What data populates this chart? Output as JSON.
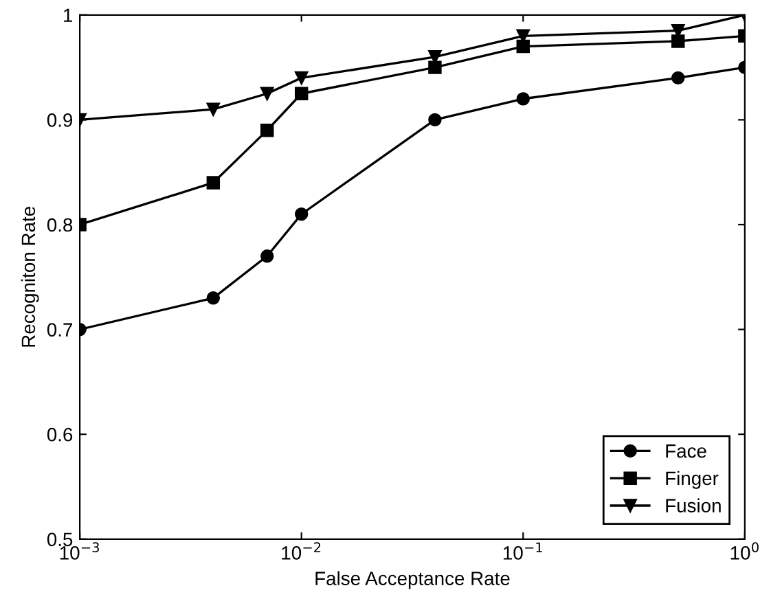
{
  "chart_data": {
    "type": "line",
    "xlabel": "False Acceptance Rate",
    "ylabel": "Recogniton Rate",
    "x": [
      0.001,
      0.004,
      0.007,
      0.01,
      0.04,
      0.1,
      0.5,
      1
    ],
    "series": [
      {
        "name": "Face",
        "color": "#000000",
        "marker": "circle",
        "values": [
          0.7,
          0.73,
          0.77,
          0.81,
          0.9,
          0.92,
          0.94,
          0.95
        ]
      },
      {
        "name": "Finger",
        "color": "#000000",
        "marker": "square",
        "values": [
          0.8,
          0.84,
          0.89,
          0.925,
          0.95,
          0.97,
          0.975,
          0.98
        ]
      },
      {
        "name": "Fusion",
        "color": "#000000",
        "marker": "triangle",
        "values": [
          0.9,
          0.91,
          0.925,
          0.94,
          0.96,
          0.98,
          0.985,
          1.0
        ]
      }
    ],
    "log": "x",
    "xlim": [
      0.001,
      1
    ],
    "xticks": [
      {
        "value": 0.001,
        "label": "10$^{−3}$"
      },
      {
        "value": 0.01,
        "label": "10$^{−2}$"
      },
      {
        "value": 0.1,
        "label": "10$^{−1}$"
      },
      {
        "value": 1,
        "label": "10$^{0}$"
      }
    ],
    "ylim": [
      0.5,
      1
    ],
    "yticks": [
      0.5,
      0.6,
      0.7,
      0.8,
      0.9,
      1
    ],
    "legend": "bottom right",
    "grid": false,
    "line_style": "solid"
  }
}
